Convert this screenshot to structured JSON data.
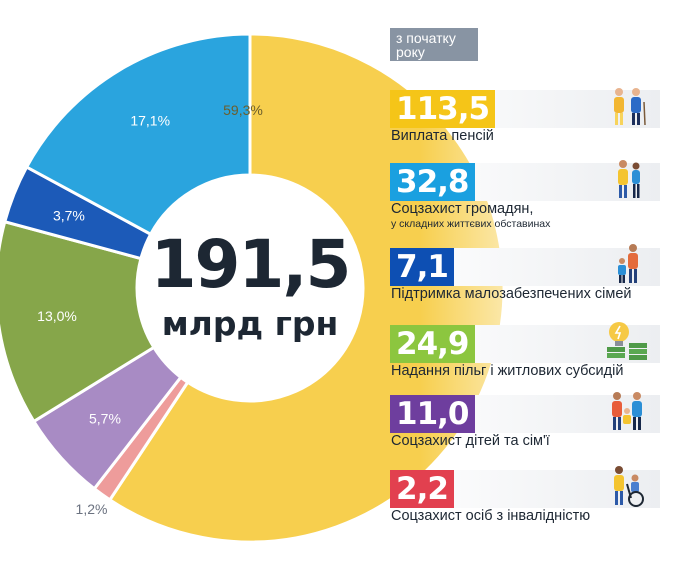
{
  "center": {
    "total": "191,5",
    "unit": "млрд грн"
  },
  "period_badge": "з початку\nроку",
  "chart_data": {
    "type": "pie",
    "title": "",
    "slices": [
      {
        "label": "Виплата пенсій",
        "percent": 59.3,
        "percent_label": "59,3%",
        "value": 113.5,
        "value_label": "113,5",
        "color": "#f7cf4e",
        "text_color": "#6b5e2d"
      },
      {
        "label": "Соцзахист осіб з інвалідністю",
        "percent": 1.2,
        "percent_label": "1,2%",
        "value": 2.2,
        "value_label": "2,2",
        "color": "#ee9c9b",
        "text_color": "#6b7280"
      },
      {
        "label": "Соцзахист дітей та сім'ї",
        "percent": 5.7,
        "percent_label": "5,7%",
        "value": 11.0,
        "value_label": "11,0",
        "color": "#a88bc4",
        "text_color": "#ffffff"
      },
      {
        "label": "Надання пільг і житлових субсидій",
        "percent": 13.0,
        "percent_label": "13,0%",
        "value": 24.9,
        "value_label": "24,9",
        "color": "#86a64a",
        "text_color": "#ffffff"
      },
      {
        "label": "Підтримка малозабезпечених сімей",
        "percent": 3.7,
        "percent_label": "3,7%",
        "value": 7.1,
        "value_label": "7,1",
        "color": "#1c5ab8",
        "text_color": "#ffffff"
      },
      {
        "label": "Соцзахист громадян, у складних життєвих обставинах",
        "percent": 17.1,
        "percent_label": "17,1%",
        "value": 32.8,
        "value_label": "32,8",
        "color": "#2aa4de",
        "text_color": "#ffffff"
      }
    ]
  },
  "legend": [
    {
      "value": "113,5",
      "label": "Виплата пенсій",
      "sub": "",
      "color": "#f5c518",
      "icon": "elderly-couple-icon"
    },
    {
      "value": "32,8",
      "label": "Соцзахист громадян,",
      "sub": "у складних життєвих обставинах",
      "color": "#1aa0e0",
      "icon": "family-support-icon"
    },
    {
      "value": "7,1",
      "label": "Підтримка малозабезпечених сімей",
      "sub": "",
      "color": "#0d4fb3",
      "icon": "parent-child-icon"
    },
    {
      "value": "24,9",
      "label": "Надання пільг і житлових субсидій",
      "sub": "",
      "color": "#8cc63f",
      "icon": "lightbulb-money-icon"
    },
    {
      "value": "11,0",
      "label": "Соцзахист дітей та сім'ї",
      "sub": "",
      "color": "#6e3e9e",
      "icon": "family-icon"
    },
    {
      "value": "2,2",
      "label": "Соцзахист осіб з інвалідністю",
      "sub": "",
      "color": "#e2404f",
      "icon": "wheelchair-icon"
    }
  ]
}
